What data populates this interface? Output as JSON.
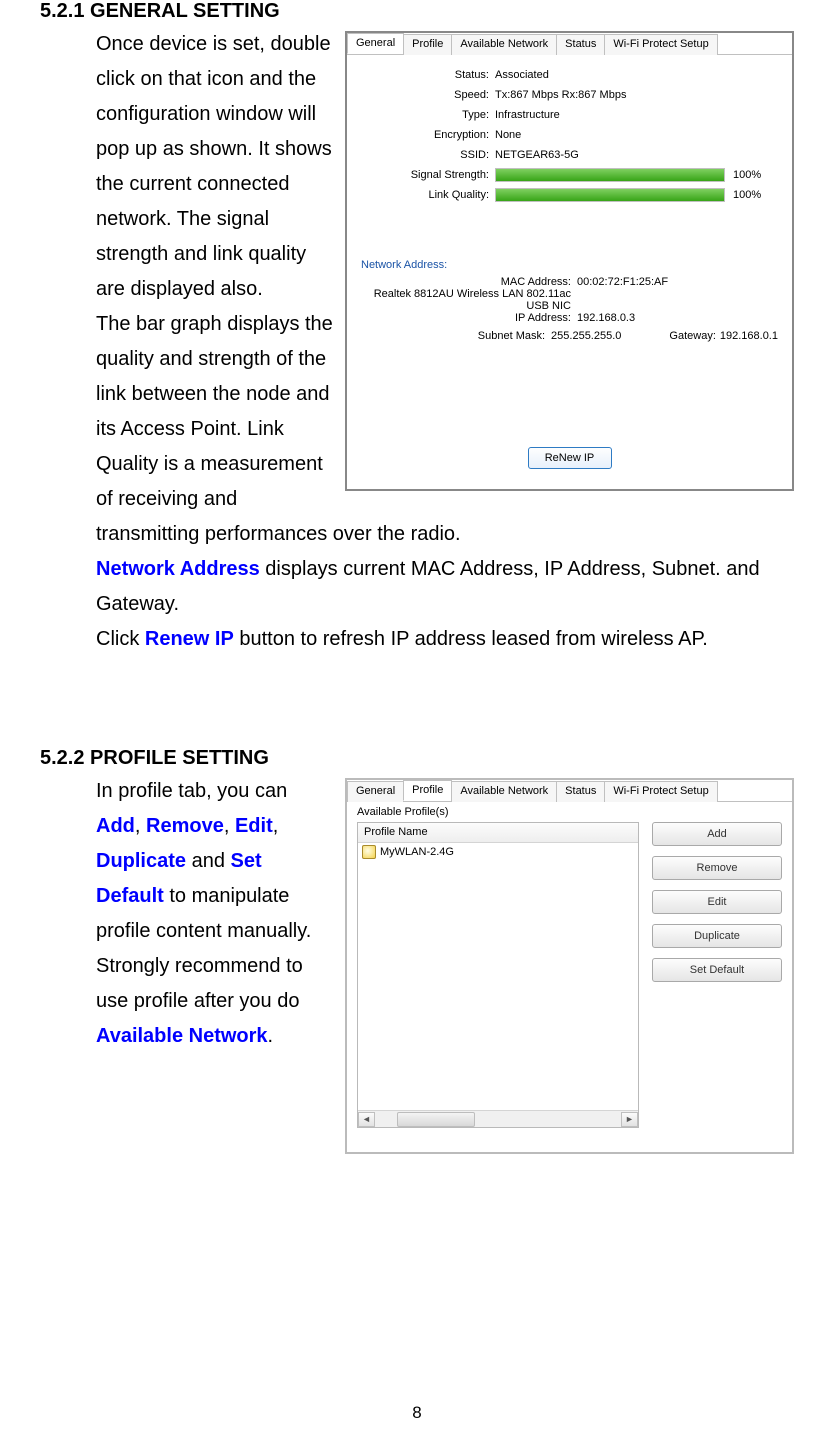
{
  "page_number": "8",
  "section1": {
    "heading": "5.2.1 GENERAL SETTING",
    "body_html": "Once device is set, double click on that icon and the configuration window will pop up as shown. It shows the current connected network. The signal strength and link quality are displayed also.<br>The bar graph displays the quality and strength of the link between the node and its Access Point. Link Quality is a measurement of receiving and transmitting performances over the radio.<br><span class='blue-bold'>Network Address</span> displays current MAC Address, IP Address, Subnet. and Gateway.<br>Click <span class='blue-bold'>Renew IP</span> button to refresh IP address leased from wireless AP."
  },
  "section2": {
    "heading": "5.2.2 PROFILE SETTING",
    "body_html": "In profile tab, you can <span class='blue-bold'>Add</span>, <span class='blue-bold'>Remove</span>, <span class='blue-bold'>Edit</span>, <span class='blue-bold'>Duplicate</span> and <span class='blue-bold'>Set Default</span> to manipulate profile content manually. Strongly recommend to use profile after you do <span class='blue-bold'>Available Network</span>."
  },
  "screenshot1": {
    "tabs": [
      "General",
      "Profile",
      "Available Network",
      "Status",
      "Wi-Fi Protect Setup"
    ],
    "active_tab_index": 0,
    "status": {
      "Status": "Associated",
      "Speed": "Tx:867 Mbps Rx:867 Mbps",
      "Type": "Infrastructure",
      "Encryption": "None",
      "SSID": "NETGEAR63-5G"
    },
    "signal_strength_label": "Signal Strength:",
    "signal_strength_pct": "100%",
    "signal_strength_value": 100,
    "link_quality_label": "Link Quality:",
    "link_quality_pct": "100%",
    "link_quality_value": 100,
    "progress_color": "#4fb52c",
    "network_address_header": "Network Address:",
    "mac_label": "MAC Address:",
    "mac_value": "00:02:72:F1:25:AF",
    "adapter_label": "Realtek 8812AU Wireless LAN 802.11ac USB NIC",
    "ip_label": "IP Address:",
    "ip_value": "192.168.0.3",
    "subnet_label": "Subnet Mask:",
    "subnet_value": "255.255.255.0",
    "gateway_label": "Gateway:",
    "gateway_value": "192.168.0.1",
    "renew_button": "ReNew IP"
  },
  "screenshot2": {
    "tabs": [
      "General",
      "Profile",
      "Available Network",
      "Status",
      "Wi-Fi Protect Setup"
    ],
    "active_tab_index": 1,
    "available_profiles_label": "Available Profile(s)",
    "column_header": "Profile Name",
    "profile_item": "MyWLAN-2.4G",
    "buttons": [
      "Add",
      "Remove",
      "Edit",
      "Duplicate",
      "Set Default"
    ]
  }
}
